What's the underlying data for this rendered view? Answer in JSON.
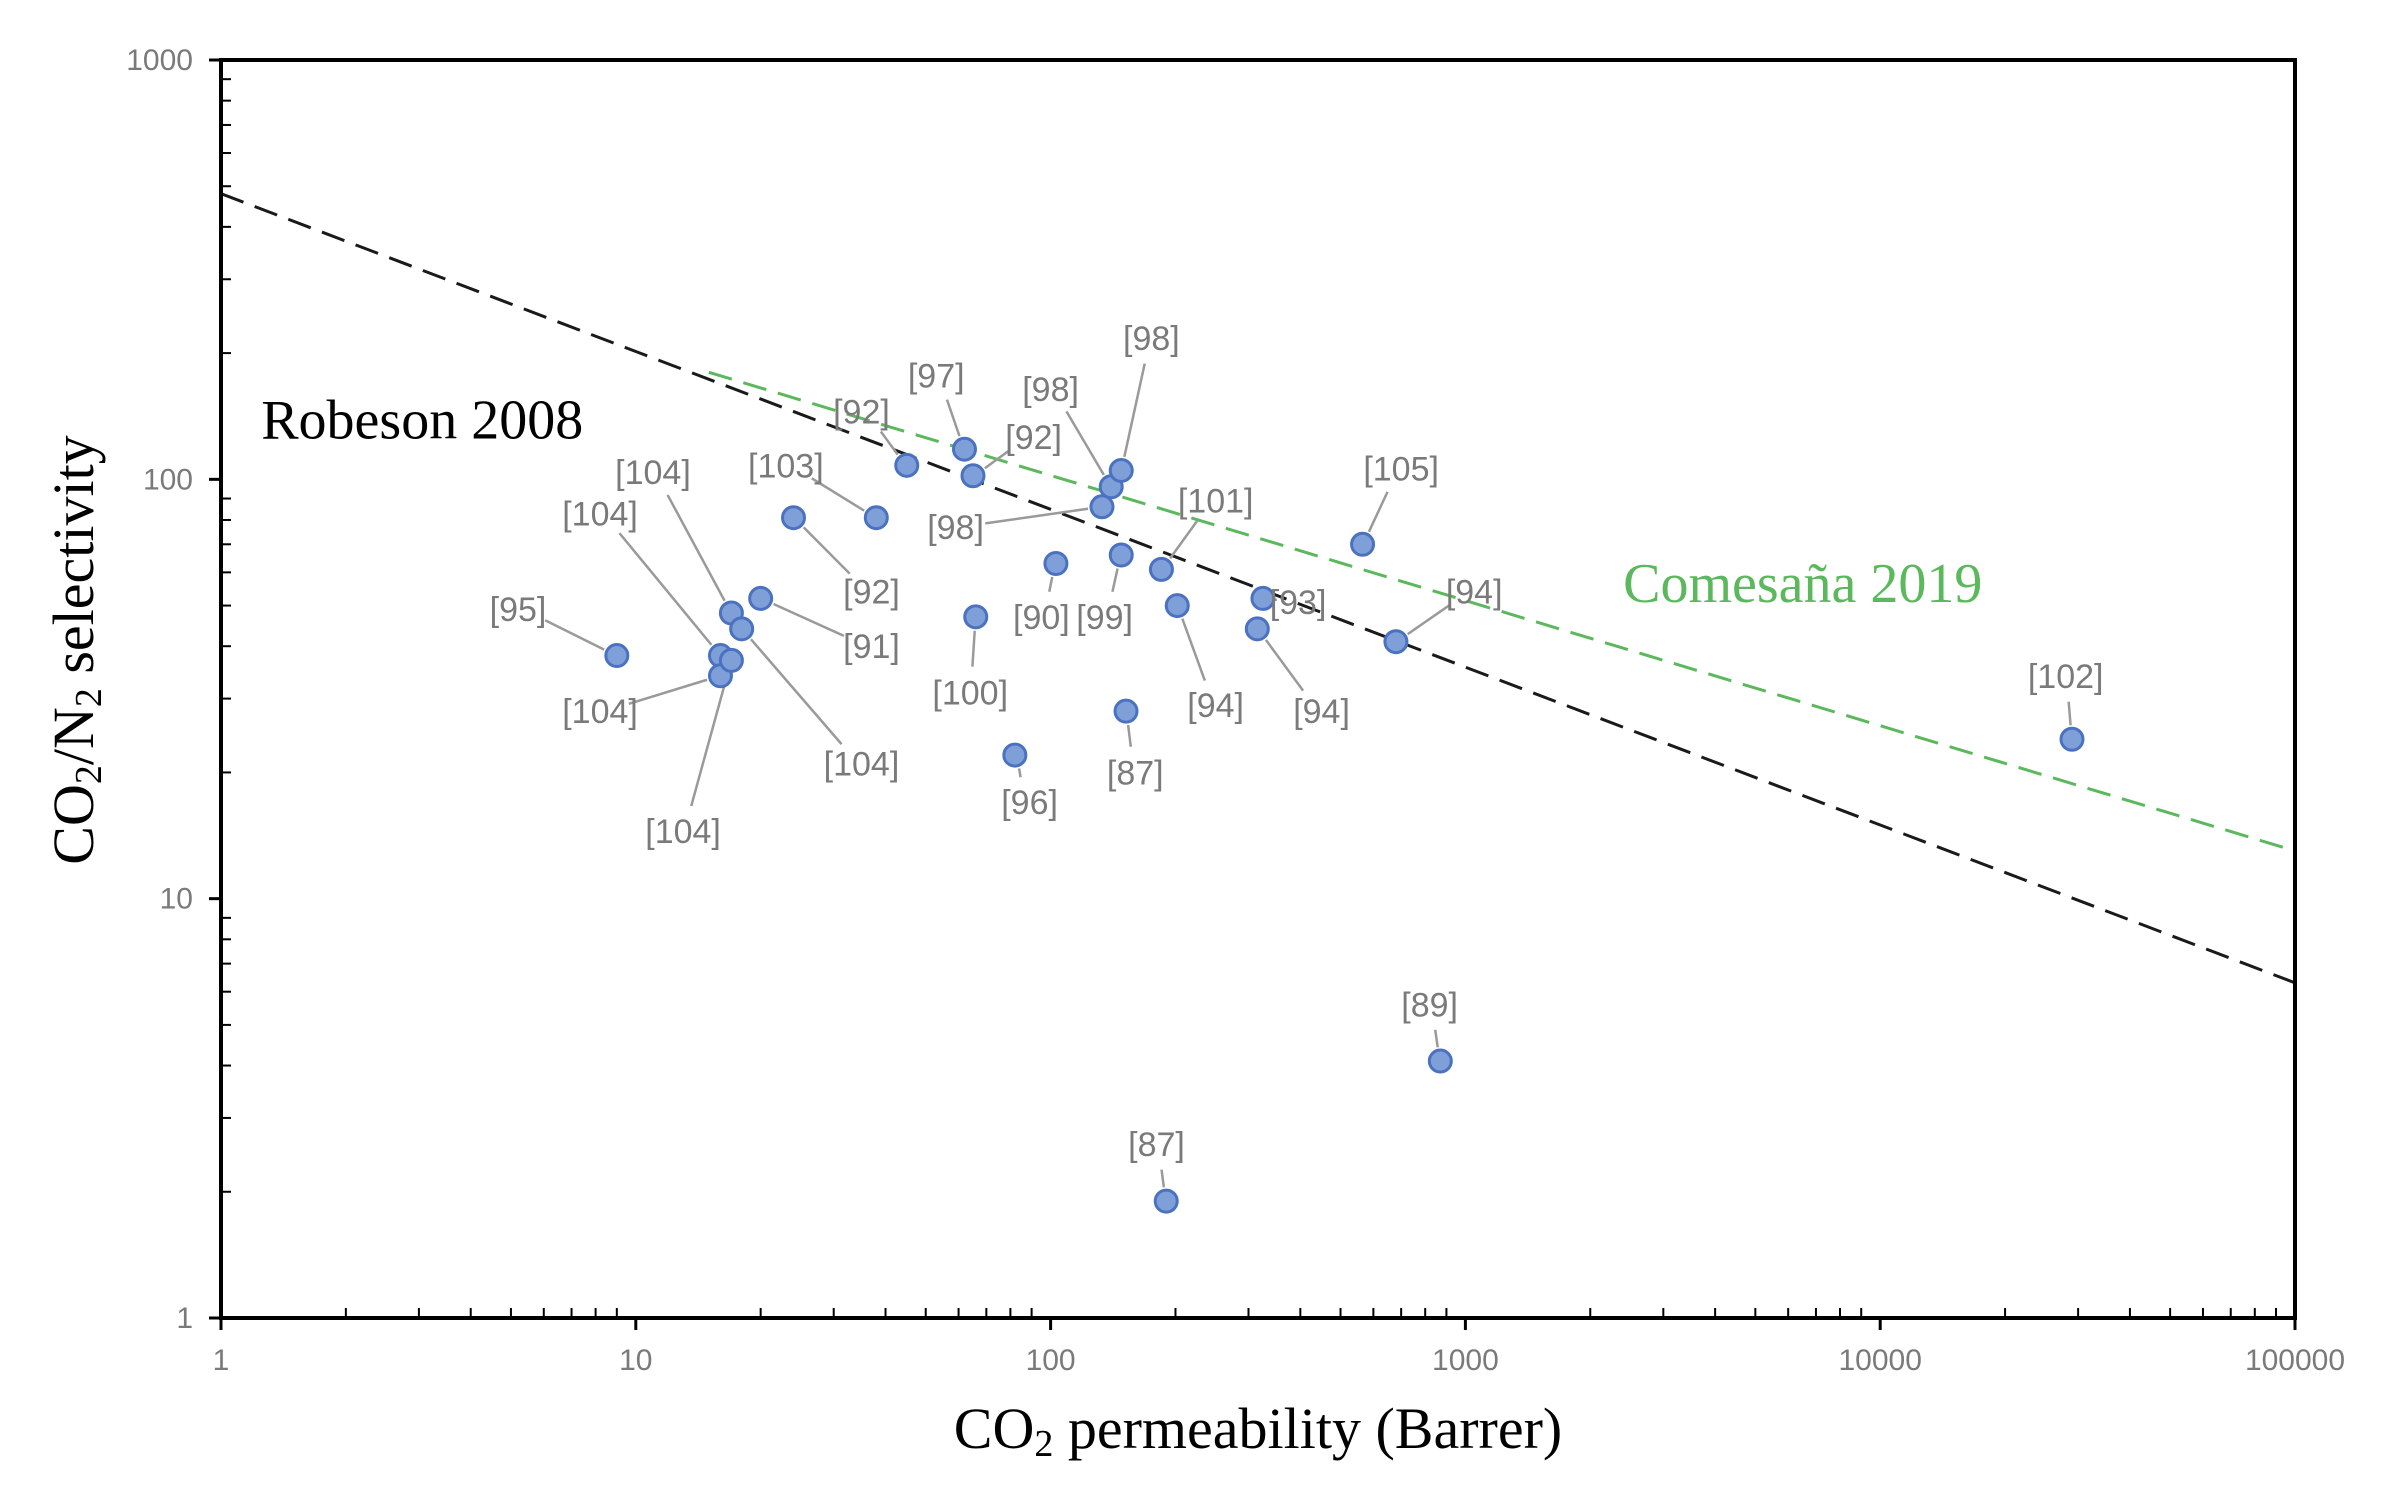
{
  "chart_data": {
    "type": "scatter",
    "title": "",
    "xlabel": {
      "main": "CO",
      "sub": "2",
      "rest": " permeability  (Barrer)"
    },
    "ylabel": {
      "main": "CO",
      "sub1": "2",
      "mid": "/N",
      "sub2": "2",
      "rest": " selectivity"
    },
    "xscale": "log",
    "yscale": "log",
    "xlim": [
      1,
      100000
    ],
    "ylim": [
      1,
      1000
    ],
    "x_ticks": [
      {
        "value": 1,
        "label": "1"
      },
      {
        "value": 10,
        "label": "10"
      },
      {
        "value": 100,
        "label": "100"
      },
      {
        "value": 1000,
        "label": "1000"
      },
      {
        "value": 10000,
        "label": "10000"
      },
      {
        "value": 100000,
        "label": "100000"
      }
    ],
    "y_ticks": [
      {
        "value": 1,
        "label": "1"
      },
      {
        "value": 10,
        "label": "10"
      },
      {
        "value": 100,
        "label": "100"
      },
      {
        "value": 1000,
        "label": "1000"
      }
    ],
    "colors": {
      "point_fill": "#7f9fd8",
      "point_stroke": "#4a72c0",
      "robeson": "#1a1a1a",
      "comesana": "#5cb85c",
      "leader": "#9a9a9a"
    },
    "bounds": [
      {
        "name": "Robeson 2008",
        "color": "#1a1a1a",
        "x": [
          1,
          100000
        ],
        "y": [
          480,
          6.3
        ]
      },
      {
        "name": "Comesaña 2019",
        "color": "#5cb85c",
        "x": [
          15,
          100000
        ],
        "y": [
          180,
          13
        ]
      }
    ],
    "points": [
      {
        "x": 9,
        "y": 38,
        "label": "[95]",
        "lx": 5.2,
        "ly": 49
      },
      {
        "x": 16,
        "y": 38,
        "label": "[104]",
        "lx": 8.2,
        "ly": 83
      },
      {
        "x": 17,
        "y": 48,
        "label": "[104]",
        "lx": 11,
        "ly": 104
      },
      {
        "x": 16,
        "y": 34,
        "label": "[104]",
        "lx": 8.2,
        "ly": 28
      },
      {
        "x": 17,
        "y": 37,
        "label": "[104]",
        "lx": 13,
        "ly": 14.5
      },
      {
        "x": 18,
        "y": 44,
        "label": "[104]",
        "lx": 35,
        "ly": 21
      },
      {
        "x": 20,
        "y": 52,
        "label": "[91]",
        "lx": 37,
        "ly": 40
      },
      {
        "x": 24,
        "y": 81,
        "label": "[92]",
        "lx": 37,
        "ly": 54
      },
      {
        "x": 38,
        "y": 81,
        "label": "[103]",
        "lx": 23,
        "ly": 108
      },
      {
        "x": 45,
        "y": 108,
        "label": "[92]",
        "lx": 35,
        "ly": 145
      },
      {
        "x": 62,
        "y": 118,
        "label": "[97]",
        "lx": 53,
        "ly": 177
      },
      {
        "x": 65,
        "y": 102,
        "label": "[92]",
        "lx": 91,
        "ly": 126
      },
      {
        "x": 66,
        "y": 47,
        "label": "[100]",
        "lx": 64,
        "ly": 31
      },
      {
        "x": 82,
        "y": 22,
        "label": "[96]",
        "lx": 89,
        "ly": 17
      },
      {
        "x": 103,
        "y": 63,
        "label": "[90]",
        "lx": 95,
        "ly": 47
      },
      {
        "x": 133,
        "y": 86,
        "label": "[98]",
        "lx": 59,
        "ly": 77
      },
      {
        "x": 140,
        "y": 96,
        "label": "[98]",
        "lx": 100,
        "ly": 164
      },
      {
        "x": 148,
        "y": 105,
        "label": "[98]",
        "lx": 175,
        "ly": 217
      },
      {
        "x": 148,
        "y": 66,
        "label": "[99]",
        "lx": 135,
        "ly": 47
      },
      {
        "x": 152,
        "y": 28,
        "label": "[87]",
        "lx": 160,
        "ly": 20
      },
      {
        "x": 185,
        "y": 61,
        "label": "[101]",
        "lx": 250,
        "ly": 89
      },
      {
        "x": 190,
        "y": 1.9,
        "label": "[87]",
        "lx": 180,
        "ly": 2.6
      },
      {
        "x": 202,
        "y": 50,
        "label": "[94]",
        "lx": 250,
        "ly": 29
      },
      {
        "x": 315,
        "y": 44,
        "label": "[94]",
        "lx": 450,
        "ly": 28
      },
      {
        "x": 325,
        "y": 52,
        "label": "[93]",
        "lx": 395,
        "ly": 51
      },
      {
        "x": 565,
        "y": 70,
        "label": "[105]",
        "lx": 700,
        "ly": 106
      },
      {
        "x": 680,
        "y": 41,
        "label": "[94]",
        "lx": 1050,
        "ly": 54
      },
      {
        "x": 870,
        "y": 4.1,
        "label": "[89]",
        "lx": 820,
        "ly": 5.6
      },
      {
        "x": 29000,
        "y": 24,
        "label": "[102]",
        "lx": 28000,
        "ly": 34
      }
    ],
    "annotations": [
      {
        "text": "Robeson 2008",
        "x": 1.25,
        "y": 125,
        "color": "#000000"
      },
      {
        "text": "Comesaña 2019",
        "x": 2400,
        "y": 51,
        "color": "#5cb85c"
      }
    ]
  }
}
